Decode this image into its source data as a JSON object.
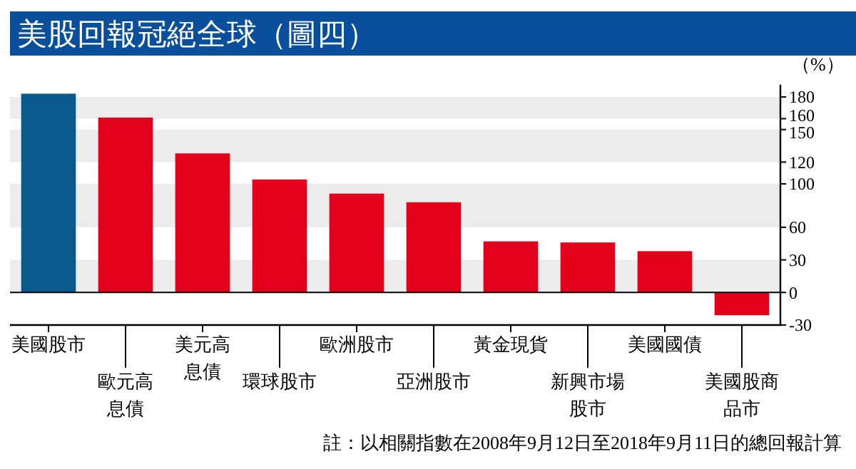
{
  "chart_data": {
    "type": "bar",
    "title": "美股回報冠絕全球（圖四）",
    "ylabel": "（%）",
    "categories": [
      "美國股市",
      "歐元高息債",
      "美元高息債",
      "環球股市",
      "歐洲股市",
      "亞洲股市",
      "黃金現貨",
      "新興市場股市",
      "美國國債",
      "美國股商品市"
    ],
    "values": [
      183,
      161,
      128,
      104,
      91,
      83,
      47,
      46,
      38,
      -21
    ],
    "colors": [
      "#0b5a8e",
      "#e2001a",
      "#e2001a",
      "#e2001a",
      "#e2001a",
      "#e2001a",
      "#e2001a",
      "#e2001a",
      "#e2001a",
      "#e2001a"
    ],
    "ylim": [
      -30,
      186
    ],
    "yticks": [
      -30,
      0,
      30,
      60,
      100,
      120,
      150,
      160,
      180
    ],
    "grid": "y",
    "annotations": [
      "註：以相關指數在2008年9月12日至2018年9月11日的總回報計算"
    ]
  }
}
